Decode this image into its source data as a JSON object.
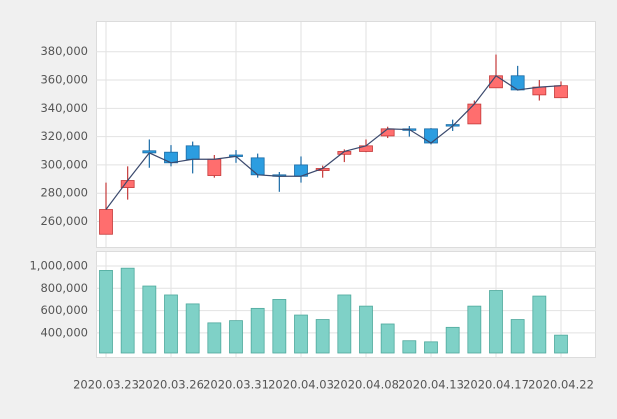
{
  "chart_data": [
    {
      "type": "candlestick",
      "open": [
        251000,
        284000,
        310000,
        309000,
        313500,
        292500,
        307000,
        305000,
        293000,
        300000,
        296000,
        307500,
        309500,
        320500,
        325500,
        325500,
        328500,
        329000,
        354500,
        363000,
        349500,
        347500
      ],
      "close": [
        268500,
        289000,
        308500,
        301500,
        304000,
        304000,
        306000,
        293000,
        292000,
        292000,
        297500,
        309500,
        313500,
        325500,
        325000,
        315500,
        327500,
        343000,
        363000,
        353000,
        355000,
        356000
      ],
      "high": [
        287500,
        299000,
        318000,
        314000,
        316500,
        307000,
        310500,
        308000,
        295000,
        306000,
        299500,
        311000,
        318000,
        327000,
        327500,
        326000,
        332000,
        345500,
        378000,
        370000,
        360000,
        359000
      ],
      "low": [
        251000,
        275500,
        298000,
        299000,
        294000,
        291000,
        301500,
        291000,
        281000,
        287500,
        291000,
        302000,
        309000,
        319000,
        320000,
        314500,
        324000,
        329000,
        354500,
        352500,
        345500,
        347500
      ],
      "up_color": "#ff6e6e",
      "down_color": "#2c9de0",
      "line_color": "#3b4a6e",
      "ylim": [
        242000,
        401000
      ],
      "yticks": [
        {
          "value": 260000,
          "label": "260,000"
        },
        {
          "value": 280000,
          "label": "280,000"
        },
        {
          "value": 300000,
          "label": "300,000"
        },
        {
          "value": 320000,
          "label": "320,000"
        },
        {
          "value": 340000,
          "label": "340,000"
        },
        {
          "value": 360000,
          "label": "360,000"
        },
        {
          "value": 380000,
          "label": "380,000"
        }
      ],
      "grid": true
    },
    {
      "type": "bar",
      "categories": [
        "2020.03.23",
        null,
        null,
        "2020.03.26",
        null,
        null,
        "2020.03.31",
        null,
        null,
        "2020.04.03",
        null,
        null,
        "2020.04.08",
        null,
        null,
        "2020.04.13",
        null,
        null,
        "2020.04.17",
        null,
        null,
        "2020.04.22"
      ],
      "values": [
        960000,
        980000,
        820000,
        740000,
        660000,
        490000,
        510000,
        620000,
        700000,
        560000,
        520000,
        740000,
        640000,
        480000,
        330000,
        320000,
        450000,
        640000,
        780000,
        520000,
        730000,
        380000
      ],
      "color": "#7fd1c7",
      "ylim": [
        220000,
        1125000
      ],
      "yticks": [
        {
          "value": 400000,
          "label": "400,000"
        },
        {
          "value": 600000,
          "label": "600,000"
        },
        {
          "value": 800000,
          "label": "800,000"
        },
        {
          "value": 1000000,
          "label": "1,000,000"
        }
      ],
      "grid": true
    }
  ]
}
